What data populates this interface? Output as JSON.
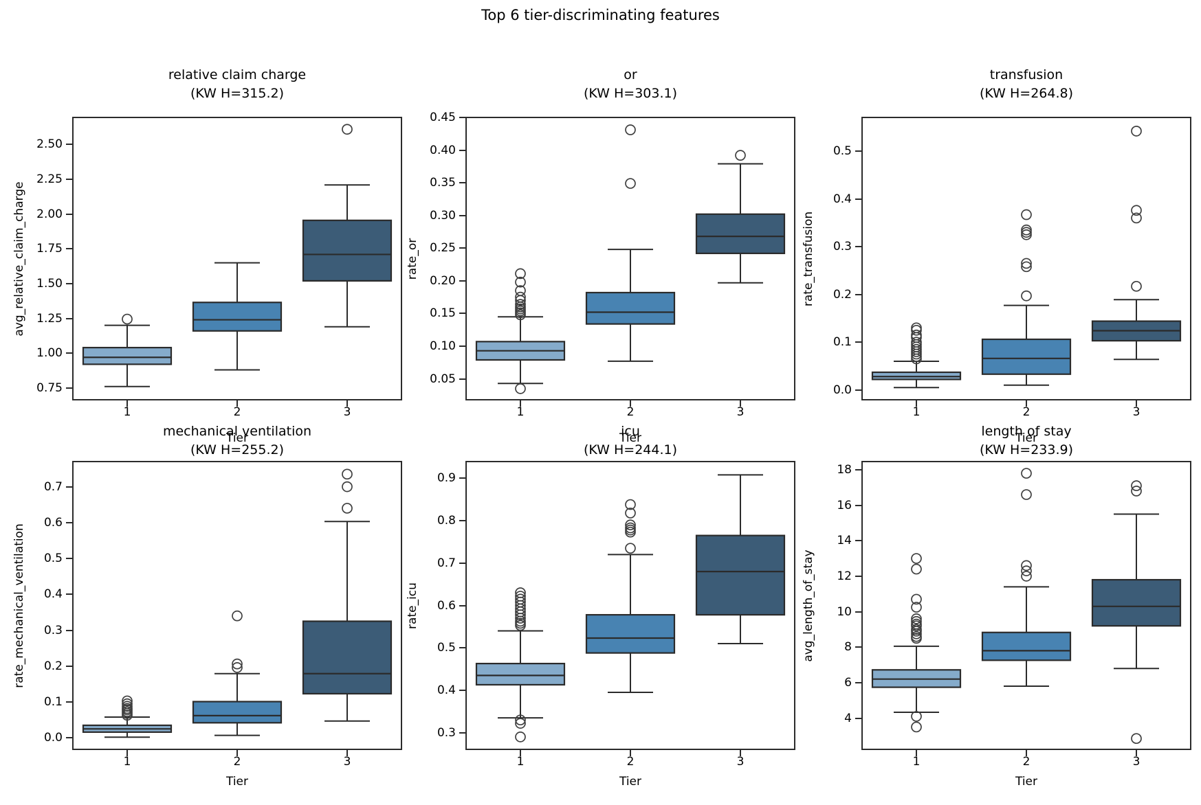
{
  "figure": {
    "suptitle": "Top 6 tier-discriminating features",
    "xlabel": "Tier",
    "x_tick_labels": [
      "1",
      "2",
      "3"
    ],
    "colors": {
      "tier_fills": [
        "#85abcb",
        "#4883b2",
        "#3c5c77"
      ],
      "box_edge": "#2b2b2b",
      "outlier_edge": "#3f3f3f",
      "text": "#000000",
      "background": "#ffffff"
    }
  },
  "chart_data": [
    {
      "type": "box",
      "title": "relative claim charge",
      "subtitle": "(KW H=315.2)",
      "kw_h": 315.2,
      "ylabel": "avg_relative_claim_charge",
      "xlabel": "Tier",
      "categories": [
        "1",
        "2",
        "3"
      ],
      "ylim": [
        0.66,
        2.7
      ],
      "yticks": [
        0.75,
        1.0,
        1.25,
        1.5,
        1.75,
        2.0,
        2.25,
        2.5
      ],
      "ytick_labels": [
        "0.75",
        "1.00",
        "1.25",
        "1.50",
        "1.75",
        "2.00",
        "2.25",
        "2.50"
      ],
      "series": [
        {
          "tier": "1",
          "whislo": 0.76,
          "q1": 0.92,
          "med": 0.97,
          "q3": 1.04,
          "whishi": 1.2,
          "outliers": [
            1.245
          ]
        },
        {
          "tier": "2",
          "whislo": 0.88,
          "q1": 1.16,
          "med": 1.24,
          "q3": 1.365,
          "whishi": 1.65,
          "outliers": []
        },
        {
          "tier": "3",
          "whislo": 1.19,
          "q1": 1.52,
          "med": 1.71,
          "q3": 1.955,
          "whishi": 2.21,
          "outliers": [
            2.61
          ]
        }
      ]
    },
    {
      "type": "box",
      "title": "or",
      "subtitle": "(KW H=303.1)",
      "kw_h": 303.1,
      "ylabel": "rate_or",
      "xlabel": "Tier",
      "categories": [
        "1",
        "2",
        "3"
      ],
      "ylim": [
        0.017,
        0.451
      ],
      "yticks": [
        0.05,
        0.1,
        0.15,
        0.2,
        0.25,
        0.3,
        0.35,
        0.4,
        0.45
      ],
      "ytick_labels": [
        "0.05",
        "0.10",
        "0.15",
        "0.20",
        "0.25",
        "0.30",
        "0.35",
        "0.40",
        "0.45"
      ],
      "series": [
        {
          "tier": "1",
          "whislo": 0.043,
          "q1": 0.079,
          "med": 0.093,
          "q3": 0.107,
          "whishi": 0.145,
          "outliers": [
            0.035,
            0.148,
            0.151,
            0.154,
            0.157,
            0.16,
            0.164,
            0.17,
            0.175,
            0.185,
            0.198,
            0.211
          ]
        },
        {
          "tier": "2",
          "whislo": 0.077,
          "q1": 0.134,
          "med": 0.152,
          "q3": 0.182,
          "whishi": 0.248,
          "outliers": [
            0.349,
            0.431
          ]
        },
        {
          "tier": "3",
          "whislo": 0.197,
          "q1": 0.242,
          "med": 0.268,
          "q3": 0.302,
          "whishi": 0.379,
          "outliers": [
            0.392
          ]
        }
      ]
    },
    {
      "type": "box",
      "title": "transfusion",
      "subtitle": "(KW H=264.8)",
      "kw_h": 264.8,
      "ylabel": "rate_transfusion",
      "xlabel": "Tier",
      "categories": [
        "1",
        "2",
        "3"
      ],
      "ylim": [
        -0.022,
        0.572
      ],
      "yticks": [
        0.0,
        0.1,
        0.2,
        0.3,
        0.4,
        0.5
      ],
      "ytick_labels": [
        "0.0",
        "0.1",
        "0.2",
        "0.3",
        "0.4",
        "0.5"
      ],
      "series": [
        {
          "tier": "1",
          "whislo": 0.005,
          "q1": 0.022,
          "med": 0.028,
          "q3": 0.037,
          "whishi": 0.06,
          "outliers": [
            0.065,
            0.07,
            0.075,
            0.08,
            0.085,
            0.09,
            0.095,
            0.1,
            0.11,
            0.115,
            0.125,
            0.13
          ]
        },
        {
          "tier": "2",
          "whislo": 0.01,
          "q1": 0.033,
          "med": 0.066,
          "q3": 0.106,
          "whishi": 0.177,
          "outliers": [
            0.197,
            0.258,
            0.265,
            0.325,
            0.33,
            0.335,
            0.367
          ]
        },
        {
          "tier": "3",
          "whislo": 0.064,
          "q1": 0.103,
          "med": 0.124,
          "q3": 0.144,
          "whishi": 0.189,
          "outliers": [
            0.217,
            0.36,
            0.376,
            0.542
          ]
        }
      ]
    },
    {
      "type": "box",
      "title": "mechanical ventilation",
      "subtitle": "(KW H=255.2)",
      "kw_h": 255.2,
      "ylabel": "rate_mechanical_ventilation",
      "xlabel": "Tier",
      "categories": [
        "1",
        "2",
        "3"
      ],
      "ylim": [
        -0.034,
        0.772
      ],
      "yticks": [
        0.0,
        0.1,
        0.2,
        0.3,
        0.4,
        0.5,
        0.6,
        0.7
      ],
      "ytick_labels": [
        "0.0",
        "0.1",
        "0.2",
        "0.3",
        "0.4",
        "0.5",
        "0.6",
        "0.7"
      ],
      "series": [
        {
          "tier": "1",
          "whislo": 0.002,
          "q1": 0.016,
          "med": 0.025,
          "q3": 0.035,
          "whishi": 0.058,
          "outliers": [
            0.063,
            0.068,
            0.073,
            0.078,
            0.082,
            0.088,
            0.095,
            0.103
          ]
        },
        {
          "tier": "2",
          "whislo": 0.007,
          "q1": 0.042,
          "med": 0.062,
          "q3": 0.101,
          "whishi": 0.179,
          "outliers": [
            0.196,
            0.206,
            0.34
          ]
        },
        {
          "tier": "3",
          "whislo": 0.047,
          "q1": 0.123,
          "med": 0.179,
          "q3": 0.325,
          "whishi": 0.603,
          "outliers": [
            0.64,
            0.7,
            0.735
          ]
        }
      ]
    },
    {
      "type": "box",
      "title": "icu",
      "subtitle": "(KW H=244.1)",
      "kw_h": 244.1,
      "ylabel": "rate_icu",
      "xlabel": "Tier",
      "categories": [
        "1",
        "2",
        "3"
      ],
      "ylim": [
        0.259,
        0.941
      ],
      "yticks": [
        0.3,
        0.4,
        0.5,
        0.6,
        0.7,
        0.8,
        0.9
      ],
      "ytick_labels": [
        "0.3",
        "0.4",
        "0.5",
        "0.6",
        "0.7",
        "0.8",
        "0.9"
      ],
      "series": [
        {
          "tier": "1",
          "whislo": 0.335,
          "q1": 0.413,
          "med": 0.435,
          "q3": 0.463,
          "whishi": 0.54,
          "outliers": [
            0.29,
            0.322,
            0.33,
            0.553,
            0.558,
            0.563,
            0.57,
            0.578,
            0.585,
            0.592,
            0.6,
            0.608,
            0.615,
            0.622,
            0.63
          ]
        },
        {
          "tier": "2",
          "whislo": 0.395,
          "q1": 0.488,
          "med": 0.523,
          "q3": 0.578,
          "whishi": 0.72,
          "outliers": [
            0.735,
            0.773,
            0.778,
            0.783,
            0.79,
            0.818,
            0.838
          ]
        },
        {
          "tier": "3",
          "whislo": 0.51,
          "q1": 0.578,
          "med": 0.68,
          "q3": 0.765,
          "whishi": 0.908,
          "outliers": []
        }
      ]
    },
    {
      "type": "box",
      "title": "length of stay",
      "subtitle": "(KW H=233.9)",
      "kw_h": 233.9,
      "ylabel": "avg_length_of_stay",
      "xlabel": "Tier",
      "categories": [
        "1",
        "2",
        "3"
      ],
      "ylim": [
        2.2,
        18.5
      ],
      "yticks": [
        4,
        6,
        8,
        10,
        12,
        14,
        16,
        18
      ],
      "ytick_labels": [
        "4",
        "6",
        "8",
        "10",
        "12",
        "14",
        "16",
        "18"
      ],
      "series": [
        {
          "tier": "1",
          "whislo": 4.33,
          "q1": 5.74,
          "med": 6.2,
          "q3": 6.72,
          "whishi": 8.05,
          "outliers": [
            3.5,
            4.1,
            8.5,
            8.6,
            8.75,
            8.9,
            9.0,
            9.2,
            9.3,
            9.45,
            9.6,
            10.25,
            10.7,
            12.4,
            13.0
          ]
        },
        {
          "tier": "2",
          "whislo": 5.8,
          "q1": 7.26,
          "med": 7.8,
          "q3": 8.83,
          "whishi": 11.4,
          "outliers": [
            12.0,
            12.3,
            12.6,
            16.6,
            17.8
          ]
        },
        {
          "tier": "3",
          "whislo": 6.8,
          "q1": 9.2,
          "med": 10.3,
          "q3": 11.8,
          "whishi": 15.5,
          "outliers": [
            2.85,
            16.8,
            17.1
          ]
        }
      ]
    }
  ]
}
